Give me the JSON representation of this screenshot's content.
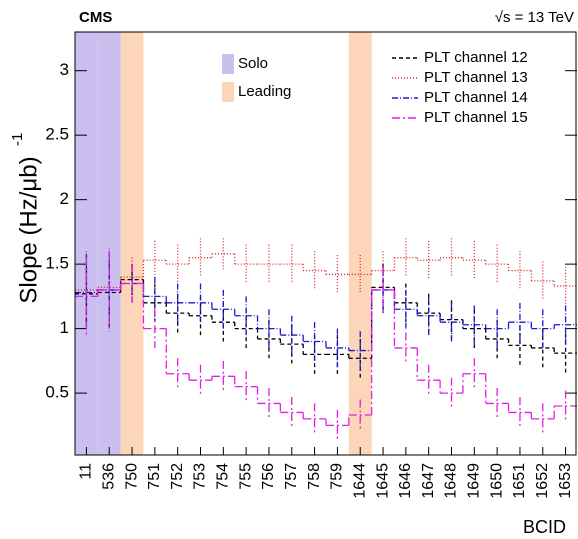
{
  "chart_data": {
    "type": "step",
    "experiment": "CMS",
    "energy": "√s = 13 TeV",
    "y_label": "Slope (Hz/μb)",
    "y_label_exponent": "-1",
    "x_label": "BCID",
    "categories": [
      "11",
      "536",
      "750",
      "751",
      "752",
      "753",
      "754",
      "755",
      "756",
      "757",
      "758",
      "759",
      "1644",
      "1645",
      "1646",
      "1647",
      "1648",
      "1649",
      "1650",
      "1651",
      "1652",
      "1653"
    ],
    "bands": [
      {
        "name": "Solo",
        "color": "#cbbff0",
        "members": [
          "11",
          "536"
        ]
      },
      {
        "name": "Leading",
        "color": "#fdd5b8",
        "members": [
          "750",
          "1644"
        ]
      }
    ],
    "series": [
      {
        "name": "PLT channel 12",
        "color": "#000000",
        "dash": "4,3",
        "values": [
          1.27,
          1.28,
          1.38,
          1.2,
          1.12,
          1.1,
          1.05,
          1.0,
          0.92,
          0.88,
          0.8,
          0.8,
          0.77,
          1.32,
          1.2,
          1.12,
          1.07,
          1.0,
          0.92,
          0.87,
          0.85,
          0.81
        ],
        "errors": [
          0.25,
          0.3,
          0.12,
          0.15,
          0.15,
          0.15,
          0.15,
          0.15,
          0.15,
          0.15,
          0.15,
          0.15,
          0.15,
          0.18,
          0.15,
          0.15,
          0.15,
          0.15,
          0.15,
          0.15,
          0.15,
          0.15
        ]
      },
      {
        "name": "PLT channel 13",
        "color": "#e02020",
        "dash": "1,2",
        "values": [
          1.3,
          1.32,
          1.4,
          1.53,
          1.5,
          1.55,
          1.58,
          1.5,
          1.5,
          1.5,
          1.45,
          1.42,
          1.42,
          1.45,
          1.55,
          1.53,
          1.55,
          1.53,
          1.5,
          1.45,
          1.37,
          1.33
        ],
        "errors": [
          0.3,
          0.3,
          0.15,
          0.15,
          0.15,
          0.15,
          0.12,
          0.15,
          0.15,
          0.15,
          0.15,
          0.15,
          0.15,
          0.15,
          0.15,
          0.15,
          0.15,
          0.15,
          0.15,
          0.15,
          0.15,
          0.15
        ]
      },
      {
        "name": "PLT channel 14",
        "color": "#1a1ad0",
        "dash": "6,2,1,2",
        "values": [
          1.28,
          1.3,
          1.35,
          1.25,
          1.2,
          1.2,
          1.15,
          1.1,
          1.0,
          0.95,
          0.9,
          0.85,
          0.83,
          1.3,
          1.15,
          1.1,
          1.05,
          1.03,
          1.0,
          1.05,
          1.0,
          1.03
        ],
        "errors": [
          0.3,
          0.3,
          0.15,
          0.15,
          0.15,
          0.15,
          0.15,
          0.15,
          0.15,
          0.15,
          0.15,
          0.15,
          0.15,
          0.18,
          0.15,
          0.15,
          0.15,
          0.15,
          0.15,
          0.15,
          0.15,
          0.15
        ]
      },
      {
        "name": "PLT channel 15",
        "color": "#e020e0",
        "dash": "8,3,2,3",
        "values": [
          1.25,
          1.3,
          1.35,
          1.0,
          0.65,
          0.6,
          0.63,
          0.55,
          0.42,
          0.35,
          0.3,
          0.25,
          0.33,
          1.3,
          0.85,
          0.6,
          0.5,
          0.65,
          0.42,
          0.35,
          0.3,
          0.4
        ],
        "errors": [
          0.3,
          0.3,
          0.15,
          0.15,
          0.12,
          0.12,
          0.12,
          0.12,
          0.12,
          0.12,
          0.12,
          0.12,
          0.12,
          0.18,
          0.12,
          0.12,
          0.12,
          0.12,
          0.12,
          0.12,
          0.12,
          0.12
        ]
      }
    ],
    "ylim": [
      0.02,
      3.3
    ],
    "yticks": [
      0.5,
      1,
      1.5,
      2,
      2.5,
      3
    ]
  }
}
